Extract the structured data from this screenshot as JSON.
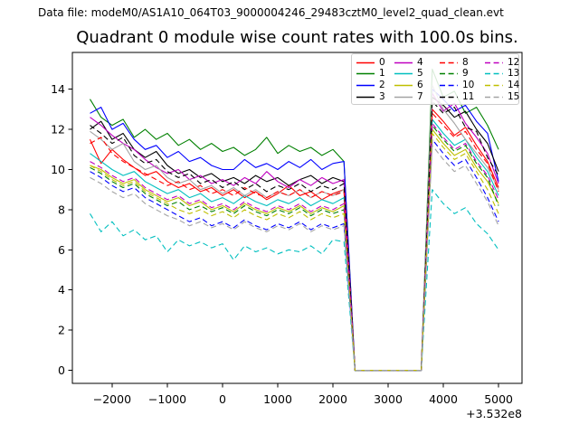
{
  "header": {
    "datafile_label": "Data file: modeM0/AS1A10_064T03_9000004246_29483cztM0_level2_quad_clean.evt"
  },
  "title": "Quadrant 0 module wise count rates with 100.0s bins.",
  "axes": {
    "xlim": [
      -2720,
      5425
    ],
    "ylim": [
      -0.65,
      15.83
    ],
    "xticks": [
      -2000,
      -1000,
      0,
      1000,
      2000,
      3000,
      4000,
      5000
    ],
    "xtick_labels": [
      "−2000",
      "−1000",
      "0",
      "1000",
      "2000",
      "3000",
      "4000",
      "5000"
    ],
    "yticks": [
      0,
      2,
      4,
      6,
      8,
      10,
      12,
      14
    ],
    "ytick_labels": [
      "0",
      "2",
      "4",
      "6",
      "8",
      "10",
      "12",
      "14"
    ],
    "offset_text": "+3.532e8",
    "grid": false
  },
  "legend": {
    "location": "upper right",
    "columns": 4
  },
  "chart_data": {
    "type": "line",
    "title": "Quadrant 0 module wise count rates with 100.0s bins.",
    "xlabel": "",
    "ylabel": "",
    "x_offset": "+3.532e8",
    "bin_seconds": 100.0,
    "x": [
      -2400,
      -2200,
      -2000,
      -1800,
      -1600,
      -1400,
      -1200,
      -1000,
      -800,
      -600,
      -400,
      -200,
      0,
      200,
      400,
      600,
      800,
      1000,
      1200,
      1400,
      1600,
      1800,
      2000,
      2200,
      2400,
      2600,
      2800,
      3000,
      3200,
      3400,
      3600,
      3800,
      4000,
      4200,
      4400,
      4600,
      4800,
      5000
    ],
    "series": [
      {
        "label": "0",
        "color": "#ff0000",
        "linestyle": "solid",
        "values": [
          11.5,
          10.3,
          11.0,
          10.5,
          10.1,
          9.7,
          9.9,
          9.4,
          9.1,
          9.3,
          8.9,
          9.1,
          8.7,
          9.0,
          8.6,
          8.9,
          8.5,
          8.8,
          9.2,
          8.7,
          8.9,
          8.5,
          8.8,
          9.0,
          0,
          0,
          0,
          0,
          0,
          0,
          0,
          13.0,
          12.4,
          11.7,
          12.1,
          11.2,
          10.4,
          9.1
        ]
      },
      {
        "label": "1",
        "color": "#008000",
        "linestyle": "solid",
        "values": [
          13.5,
          12.6,
          12.2,
          12.5,
          11.6,
          12.0,
          11.5,
          11.8,
          11.2,
          11.5,
          11.0,
          11.3,
          10.9,
          11.1,
          10.7,
          11.0,
          11.6,
          10.8,
          11.2,
          10.9,
          11.1,
          10.7,
          11.0,
          10.4,
          0,
          0,
          0,
          0,
          0,
          0,
          0,
          15.0,
          13.6,
          13.9,
          12.8,
          13.1,
          12.2,
          11.0
        ]
      },
      {
        "label": "2",
        "color": "#0000ff",
        "linestyle": "solid",
        "values": [
          12.8,
          13.1,
          12.0,
          12.3,
          11.5,
          11.0,
          11.2,
          10.6,
          10.9,
          10.4,
          10.6,
          10.2,
          10.0,
          10.0,
          10.5,
          10.1,
          10.3,
          10.0,
          10.4,
          10.1,
          10.5,
          10.0,
          10.3,
          10.4,
          0,
          0,
          0,
          0,
          0,
          0,
          0,
          14.0,
          13.5,
          12.9,
          13.2,
          12.4,
          11.8,
          9.4
        ]
      },
      {
        "label": "3",
        "color": "#000000",
        "linestyle": "solid",
        "values": [
          12.0,
          12.4,
          11.5,
          11.8,
          11.0,
          10.6,
          10.9,
          10.2,
          9.8,
          10.0,
          9.6,
          9.8,
          9.4,
          9.6,
          9.3,
          9.7,
          9.4,
          9.6,
          9.2,
          9.5,
          9.7,
          9.3,
          9.6,
          9.4,
          0,
          0,
          0,
          0,
          0,
          0,
          0,
          13.6,
          13.2,
          12.6,
          12.9,
          12.0,
          11.3,
          9.9
        ]
      },
      {
        "label": "4",
        "color": "#bf00bf",
        "linestyle": "solid",
        "values": [
          12.6,
          12.2,
          11.7,
          11.3,
          11.0,
          10.5,
          10.1,
          9.8,
          10.0,
          9.5,
          9.7,
          9.3,
          9.5,
          9.2,
          9.6,
          9.3,
          9.9,
          9.4,
          9.1,
          9.5,
          9.2,
          9.6,
          9.3,
          9.5,
          0,
          0,
          0,
          0,
          0,
          0,
          0,
          13.8,
          12.9,
          13.3,
          12.3,
          11.6,
          10.8,
          9.3
        ]
      },
      {
        "label": "5",
        "color": "#00bfbf",
        "linestyle": "solid",
        "values": [
          10.8,
          10.4,
          10.0,
          9.7,
          9.9,
          9.4,
          9.1,
          8.8,
          9.0,
          8.6,
          8.8,
          8.4,
          8.6,
          8.3,
          8.7,
          8.4,
          8.2,
          8.5,
          8.3,
          8.6,
          8.2,
          8.5,
          8.3,
          8.6,
          0,
          0,
          0,
          0,
          0,
          0,
          0,
          12.5,
          11.8,
          11.2,
          11.5,
          10.6,
          9.9,
          8.7
        ]
      },
      {
        "label": "6",
        "color": "#bfbf00",
        "linestyle": "solid",
        "values": [
          10.2,
          10.0,
          9.6,
          9.3,
          9.5,
          9.0,
          8.7,
          8.4,
          8.6,
          8.2,
          8.4,
          8.0,
          8.2,
          7.9,
          8.3,
          8.0,
          7.8,
          8.1,
          7.9,
          8.2,
          7.8,
          8.1,
          7.9,
          8.2,
          0,
          0,
          0,
          0,
          0,
          0,
          0,
          12.0,
          11.3,
          10.7,
          11.0,
          10.1,
          9.4,
          8.3
        ]
      },
      {
        "label": "7",
        "color": "#a3a3a3",
        "linestyle": "solid",
        "values": [
          11.9,
          11.5,
          11.0,
          11.3,
          10.4,
          10.0,
          10.2,
          9.6,
          9.3,
          9.5,
          9.0,
          9.2,
          8.8,
          9.1,
          8.7,
          9.0,
          8.6,
          8.9,
          8.7,
          9.0,
          8.6,
          8.9,
          8.7,
          9.0,
          0,
          0,
          0,
          0,
          0,
          0,
          0,
          14.2,
          13.0,
          12.3,
          11.5,
          10.8,
          10.1,
          9.0
        ]
      },
      {
        "label": "8",
        "color": "#ff0000",
        "linestyle": "dashed",
        "values": [
          11.3,
          11.6,
          10.8,
          10.4,
          10.1,
          9.8,
          9.5,
          9.2,
          9.4,
          9.0,
          9.2,
          8.8,
          9.0,
          8.7,
          9.1,
          8.8,
          8.6,
          8.9,
          8.7,
          9.0,
          8.6,
          8.9,
          8.7,
          8.9,
          0,
          0,
          0,
          0,
          0,
          0,
          0,
          12.8,
          12.2,
          11.6,
          11.9,
          11.0,
          10.3,
          8.9
        ]
      },
      {
        "label": "9",
        "color": "#008000",
        "linestyle": "dashed",
        "values": [
          10.1,
          9.8,
          9.4,
          9.1,
          9.3,
          8.8,
          8.5,
          8.2,
          8.4,
          8.0,
          8.2,
          7.9,
          8.1,
          7.8,
          8.2,
          7.9,
          7.7,
          8.0,
          7.8,
          8.1,
          7.7,
          8.0,
          7.8,
          8.0,
          0,
          0,
          0,
          0,
          0,
          0,
          0,
          12.2,
          11.5,
          10.9,
          11.2,
          10.3,
          9.6,
          8.2
        ]
      },
      {
        "label": "10",
        "color": "#0000ff",
        "linestyle": "dashed",
        "values": [
          9.9,
          9.6,
          9.2,
          8.9,
          9.1,
          8.6,
          8.3,
          8.0,
          7.7,
          7.4,
          7.6,
          7.2,
          7.4,
          7.1,
          7.5,
          7.2,
          7.0,
          7.3,
          7.1,
          7.4,
          7.0,
          7.3,
          7.1,
          7.3,
          0,
          0,
          0,
          0,
          0,
          0,
          0,
          11.5,
          10.8,
          10.2,
          10.5,
          9.6,
          8.6,
          7.4
        ]
      },
      {
        "label": "11",
        "color": "#000000",
        "linestyle": "dashed",
        "values": [
          12.2,
          11.8,
          11.3,
          11.6,
          10.7,
          10.3,
          10.5,
          9.9,
          9.6,
          9.8,
          9.3,
          9.5,
          9.1,
          9.4,
          9.0,
          9.3,
          8.9,
          9.2,
          9.0,
          9.3,
          8.9,
          9.2,
          9.0,
          9.3,
          0,
          0,
          0,
          0,
          0,
          0,
          0,
          13.4,
          12.8,
          13.1,
          12.1,
          11.9,
          10.6,
          9.7
        ]
      },
      {
        "label": "12",
        "color": "#bf00bf",
        "linestyle": "dashed",
        "values": [
          10.4,
          10.1,
          9.7,
          9.4,
          9.6,
          9.1,
          8.8,
          8.5,
          8.7,
          8.3,
          8.5,
          8.1,
          8.3,
          8.0,
          8.4,
          8.1,
          7.9,
          8.2,
          8.0,
          8.3,
          7.9,
          8.2,
          8.0,
          8.3,
          0,
          0,
          0,
          0,
          0,
          0,
          0,
          12.3,
          11.6,
          11.0,
          11.3,
          10.4,
          9.7,
          8.5
        ]
      },
      {
        "label": "13",
        "color": "#00bfbf",
        "linestyle": "dashed",
        "values": [
          7.8,
          6.9,
          7.4,
          6.7,
          7.0,
          6.5,
          6.7,
          5.9,
          6.5,
          6.2,
          6.4,
          6.1,
          6.3,
          5.5,
          6.2,
          5.9,
          6.1,
          5.8,
          6.0,
          5.9,
          6.2,
          5.8,
          6.5,
          6.4,
          0,
          0,
          0,
          0,
          0,
          0,
          0,
          9.0,
          8.3,
          7.8,
          8.1,
          7.3,
          6.8,
          6.0
        ]
      },
      {
        "label": "14",
        "color": "#bfbf00",
        "linestyle": "dashed",
        "values": [
          10.2,
          9.9,
          9.5,
          9.2,
          9.4,
          8.9,
          8.6,
          8.3,
          8.0,
          7.8,
          8.0,
          7.7,
          7.9,
          7.6,
          8.0,
          7.7,
          7.5,
          7.8,
          7.6,
          7.9,
          7.5,
          7.8,
          7.6,
          7.8,
          0,
          0,
          0,
          0,
          0,
          0,
          0,
          11.8,
          11.1,
          10.5,
          10.8,
          9.9,
          9.0,
          7.8
        ]
      },
      {
        "label": "15",
        "color": "#a3a3a3",
        "linestyle": "dashed",
        "values": [
          9.6,
          9.3,
          8.9,
          8.6,
          8.8,
          8.3,
          8.0,
          7.7,
          7.5,
          7.2,
          7.4,
          7.1,
          7.3,
          7.0,
          7.4,
          7.1,
          6.9,
          7.2,
          7.0,
          7.3,
          6.9,
          7.2,
          7.0,
          7.2,
          0,
          0,
          0,
          0,
          0,
          0,
          0,
          11.2,
          10.5,
          9.9,
          10.2,
          9.3,
          8.4,
          7.2
        ]
      }
    ]
  }
}
